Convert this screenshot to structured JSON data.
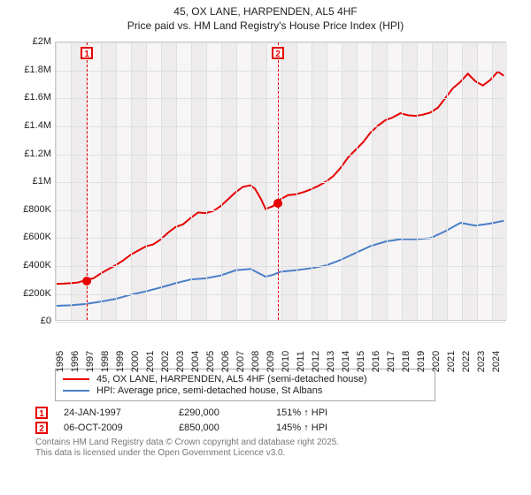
{
  "title_line1": "45, OX LANE, HARPENDEN, AL5 4HF",
  "title_line2": "Price paid vs. HM Land Registry's House Price Index (HPI)",
  "chart": {
    "type": "line",
    "background_color": "#f7f5f6",
    "grid_color": "#e0e0e0",
    "border_color": "#cccccc",
    "x_years": [
      1995,
      1996,
      1997,
      1998,
      1999,
      2000,
      2001,
      2002,
      2003,
      2004,
      2005,
      2006,
      2007,
      2008,
      2009,
      2010,
      2011,
      2012,
      2013,
      2014,
      2015,
      2016,
      2017,
      2018,
      2019,
      2020,
      2021,
      2022,
      2023,
      2024
    ],
    "xlim": [
      1995,
      2025
    ],
    "ylim": [
      0,
      2000000
    ],
    "ytick_step": 200000,
    "y_tick_labels": [
      "£0",
      "£200K",
      "£400K",
      "£600K",
      "£800K",
      "£1M",
      "£1.2M",
      "£1.4M",
      "£1.6M",
      "£1.8M",
      "£2M"
    ],
    "series": [
      {
        "name": "45, OX LANE, HARPENDEN, AL5 4HF (semi-detached house)",
        "color": "#e60000",
        "line_width": 2,
        "points": [
          [
            1995.0,
            260000
          ],
          [
            1995.5,
            262000
          ],
          [
            1996.0,
            265000
          ],
          [
            1996.5,
            270000
          ],
          [
            1997.07,
            290000
          ],
          [
            1997.5,
            300000
          ],
          [
            1998.0,
            335000
          ],
          [
            1998.5,
            365000
          ],
          [
            1999.0,
            395000
          ],
          [
            1999.5,
            430000
          ],
          [
            2000.0,
            470000
          ],
          [
            2000.5,
            500000
          ],
          [
            2001.0,
            530000
          ],
          [
            2001.5,
            545000
          ],
          [
            2002.0,
            580000
          ],
          [
            2002.5,
            630000
          ],
          [
            2003.0,
            670000
          ],
          [
            2003.5,
            690000
          ],
          [
            2004.0,
            735000
          ],
          [
            2004.5,
            775000
          ],
          [
            2005.0,
            770000
          ],
          [
            2005.5,
            785000
          ],
          [
            2006.0,
            820000
          ],
          [
            2006.5,
            870000
          ],
          [
            2007.0,
            920000
          ],
          [
            2007.5,
            960000
          ],
          [
            2008.0,
            970000
          ],
          [
            2008.3,
            945000
          ],
          [
            2008.7,
            870000
          ],
          [
            2009.0,
            800000
          ],
          [
            2009.5,
            820000
          ],
          [
            2009.77,
            850000
          ],
          [
            2010.0,
            870000
          ],
          [
            2010.5,
            900000
          ],
          [
            2011.0,
            905000
          ],
          [
            2011.5,
            920000
          ],
          [
            2012.0,
            940000
          ],
          [
            2012.5,
            965000
          ],
          [
            2013.0,
            995000
          ],
          [
            2013.5,
            1035000
          ],
          [
            2014.0,
            1095000
          ],
          [
            2014.5,
            1170000
          ],
          [
            2015.0,
            1225000
          ],
          [
            2015.5,
            1280000
          ],
          [
            2016.0,
            1350000
          ],
          [
            2016.5,
            1400000
          ],
          [
            2017.0,
            1440000
          ],
          [
            2017.5,
            1460000
          ],
          [
            2018.0,
            1490000
          ],
          [
            2018.5,
            1475000
          ],
          [
            2019.0,
            1470000
          ],
          [
            2019.5,
            1480000
          ],
          [
            2020.0,
            1495000
          ],
          [
            2020.5,
            1530000
          ],
          [
            2021.0,
            1600000
          ],
          [
            2021.5,
            1670000
          ],
          [
            2022.0,
            1715000
          ],
          [
            2022.5,
            1775000
          ],
          [
            2023.0,
            1720000
          ],
          [
            2023.5,
            1690000
          ],
          [
            2024.0,
            1730000
          ],
          [
            2024.5,
            1790000
          ],
          [
            2024.9,
            1760000
          ]
        ]
      },
      {
        "name": "HPI: Average price, semi-detached house, St Albans",
        "color": "#4a7fc7",
        "line_width": 2,
        "points": [
          [
            1995.0,
            102000
          ],
          [
            1996.0,
            106000
          ],
          [
            1997.0,
            115000
          ],
          [
            1998.0,
            132000
          ],
          [
            1999.0,
            152000
          ],
          [
            2000.0,
            182000
          ],
          [
            2001.0,
            206000
          ],
          [
            2002.0,
            234000
          ],
          [
            2003.0,
            265000
          ],
          [
            2004.0,
            292000
          ],
          [
            2005.0,
            300000
          ],
          [
            2006.0,
            320000
          ],
          [
            2007.0,
            358000
          ],
          [
            2008.0,
            368000
          ],
          [
            2008.5,
            340000
          ],
          [
            2009.0,
            312000
          ],
          [
            2009.5,
            325000
          ],
          [
            2010.0,
            348000
          ],
          [
            2011.0,
            358000
          ],
          [
            2012.0,
            372000
          ],
          [
            2013.0,
            392000
          ],
          [
            2014.0,
            432000
          ],
          [
            2015.0,
            482000
          ],
          [
            2016.0,
            532000
          ],
          [
            2017.0,
            565000
          ],
          [
            2018.0,
            582000
          ],
          [
            2019.0,
            582000
          ],
          [
            2020.0,
            590000
          ],
          [
            2021.0,
            640000
          ],
          [
            2022.0,
            700000
          ],
          [
            2023.0,
            680000
          ],
          [
            2024.0,
            695000
          ],
          [
            2024.9,
            715000
          ]
        ]
      }
    ],
    "sales": [
      {
        "n": "1",
        "year": 1997.07,
        "value": 290000,
        "date": "24-JAN-1997",
        "price": "£290,000",
        "hpi": "151% ↑ HPI"
      },
      {
        "n": "2",
        "year": 2009.77,
        "value": 850000,
        "date": "06-OCT-2009",
        "price": "£850,000",
        "hpi": "145% ↑ HPI"
      }
    ],
    "marker_color": "#e60000"
  },
  "legend": {
    "label_series_a": "45, OX LANE, HARPENDEN, AL5 4HF (semi-detached house)",
    "label_series_b": "HPI: Average price, semi-detached house, St Albans"
  },
  "footer_line1": "Contains HM Land Registry data © Crown copyright and database right 2025.",
  "footer_line2": "This data is licensed under the Open Government Licence v3.0."
}
